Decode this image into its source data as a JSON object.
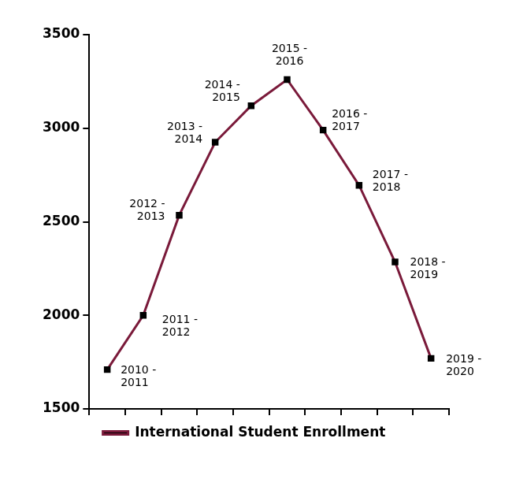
{
  "chart_data": {
    "type": "line",
    "categories": [
      "2010 - 2011",
      "2011 - 2012",
      "2012 - 2013",
      "2013 - 2014",
      "2014 - 2015",
      "2015 - 2016",
      "2016 - 2017",
      "2017 - 2018",
      "2018 - 2019",
      "2019 - 2020"
    ],
    "series": [
      {
        "name": "International Student Enrollment",
        "color": "#7a1a3a",
        "values": [
          1710,
          2000,
          2535,
          2925,
          3120,
          3260,
          2990,
          2695,
          2285,
          1770
        ],
        "marker": "square",
        "line_style": "solid"
      }
    ],
    "ylim": [
      1500,
      3500
    ],
    "yticks": [
      1500,
      2000,
      2500,
      3000,
      3500
    ],
    "grid": false,
    "legend": "bottom",
    "tick_labels": "y"
  }
}
